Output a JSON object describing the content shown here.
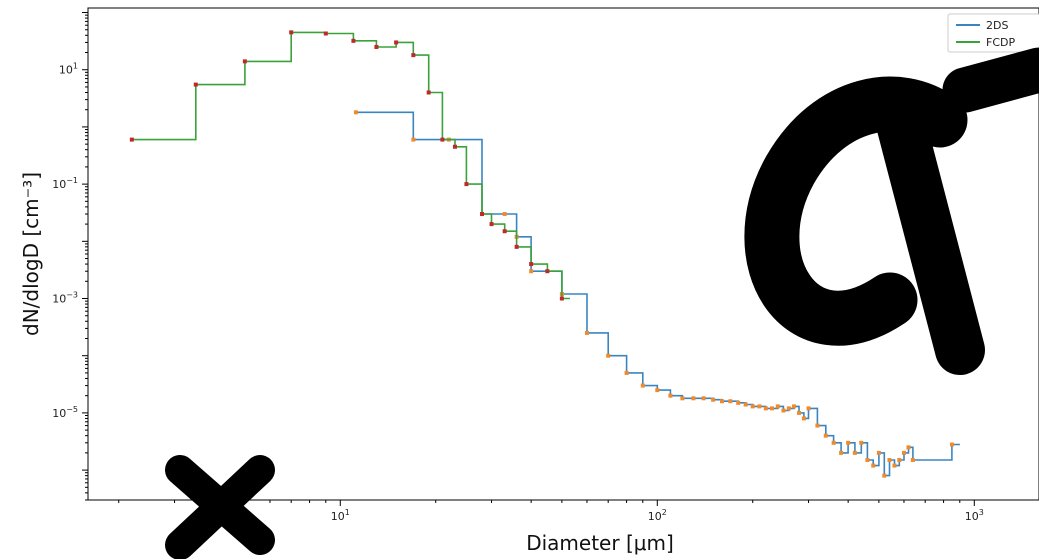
{
  "chart_data": {
    "type": "line",
    "title": "",
    "xlabel": "Diameter [μm]",
    "ylabel": "dN/dlogD [cm⁻³]",
    "xscale": "log",
    "yscale": "log",
    "xlim": [
      1.6,
      1600
    ],
    "ylim": [
      3e-07,
      120
    ],
    "grid": false,
    "legend_position": "top-right",
    "x_tick_labels": [
      {
        "value": 10,
        "base": "10",
        "exp": "1"
      },
      {
        "value": 100,
        "base": "10",
        "exp": "2"
      },
      {
        "value": 1000,
        "base": "10",
        "exp": "3"
      }
    ],
    "y_tick_labels": [
      {
        "value": 10,
        "base": "10",
        "exp": "1"
      },
      {
        "value": 0.1,
        "base": "10",
        "exp": "−1"
      },
      {
        "value": 0.001,
        "base": "10",
        "exp": "−3"
      },
      {
        "value": 1e-05,
        "base": "10",
        "exp": "−5"
      }
    ],
    "series": [
      {
        "name": "2DS",
        "color": "#3a85c0",
        "marker_color": "#f08a2a",
        "x": [
          11.2,
          17,
          22,
          28,
          33,
          36,
          40,
          50,
          60,
          70,
          80,
          90,
          100,
          110,
          120,
          130,
          140,
          150,
          160,
          170,
          180,
          190,
          200,
          210,
          220,
          230,
          240,
          250,
          260,
          270,
          280,
          290,
          300,
          320,
          340,
          360,
          380,
          400,
          420,
          440,
          460,
          480,
          500,
          520,
          540,
          560,
          580,
          600,
          620,
          640,
          850
        ],
        "y": [
          1.8,
          0.6,
          0.6,
          0.03,
          0.03,
          0.012,
          0.003,
          0.0012,
          0.00025,
          0.0001,
          5e-05,
          3e-05,
          2.5e-05,
          2e-05,
          1.8e-05,
          1.8e-05,
          1.8e-05,
          1.7e-05,
          1.6e-05,
          1.6e-05,
          1.5e-05,
          1.4e-05,
          1.3e-05,
          1.3e-05,
          1.2e-05,
          1.2e-05,
          1.3e-05,
          1.1e-05,
          1.2e-05,
          1.3e-05,
          1e-05,
          8e-06,
          1.2e-05,
          6e-06,
          4e-06,
          3e-06,
          2e-06,
          3e-06,
          2e-06,
          3e-06,
          1.5e-06,
          1.2e-06,
          2e-06,
          8e-07,
          1.5e-06,
          1.2e-06,
          1.5e-06,
          2e-06,
          2.5e-06,
          1.5e-06,
          2.8e-06
        ]
      },
      {
        "name": "FCDP",
        "color": "#3aa23a",
        "marker_color": "#c0282a",
        "x": [
          2.2,
          3.5,
          5,
          7,
          9,
          11,
          13,
          15,
          17,
          19,
          21,
          23,
          25,
          28,
          30,
          33,
          36,
          40,
          45,
          50
        ],
        "y": [
          0.6,
          5.5,
          14,
          45,
          43,
          32,
          25,
          30,
          18,
          4,
          0.6,
          0.45,
          0.1,
          0.03,
          0.02,
          0.015,
          0.008,
          0.004,
          0.003,
          0.001
        ]
      }
    ]
  }
}
